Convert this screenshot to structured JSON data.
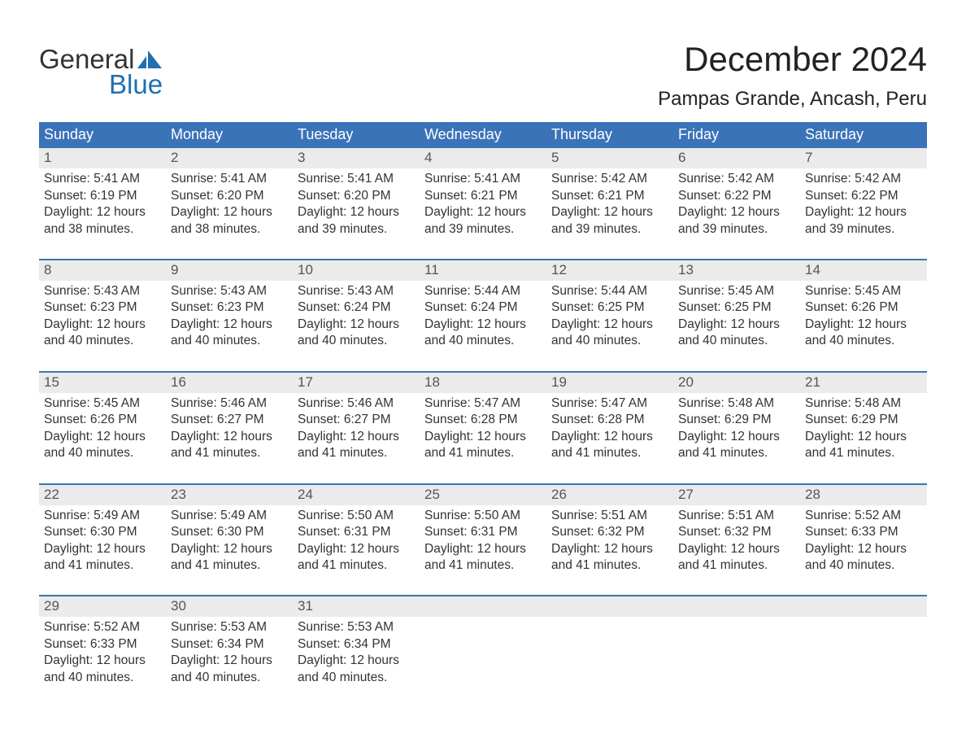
{
  "logo": {
    "word1": "General",
    "word2": "Blue"
  },
  "title": "December 2024",
  "location": "Pampas Grande, Ancash, Peru",
  "colors": {
    "header_blue": "#3b73b9",
    "accent_blue": "#1f6fb2",
    "light_gray": "#ebebeb",
    "text": "#333333",
    "page_bg": "#ffffff"
  },
  "daysOfWeek": [
    "Sunday",
    "Monday",
    "Tuesday",
    "Wednesday",
    "Thursday",
    "Friday",
    "Saturday"
  ],
  "weeks": [
    [
      {
        "date": "1",
        "sunrise": "5:41 AM",
        "sunset": "6:19 PM",
        "daylight": "12 hours and 38 minutes."
      },
      {
        "date": "2",
        "sunrise": "5:41 AM",
        "sunset": "6:20 PM",
        "daylight": "12 hours and 38 minutes."
      },
      {
        "date": "3",
        "sunrise": "5:41 AM",
        "sunset": "6:20 PM",
        "daylight": "12 hours and 39 minutes."
      },
      {
        "date": "4",
        "sunrise": "5:41 AM",
        "sunset": "6:21 PM",
        "daylight": "12 hours and 39 minutes."
      },
      {
        "date": "5",
        "sunrise": "5:42 AM",
        "sunset": "6:21 PM",
        "daylight": "12 hours and 39 minutes."
      },
      {
        "date": "6",
        "sunrise": "5:42 AM",
        "sunset": "6:22 PM",
        "daylight": "12 hours and 39 minutes."
      },
      {
        "date": "7",
        "sunrise": "5:42 AM",
        "sunset": "6:22 PM",
        "daylight": "12 hours and 39 minutes."
      }
    ],
    [
      {
        "date": "8",
        "sunrise": "5:43 AM",
        "sunset": "6:23 PM",
        "daylight": "12 hours and 40 minutes."
      },
      {
        "date": "9",
        "sunrise": "5:43 AM",
        "sunset": "6:23 PM",
        "daylight": "12 hours and 40 minutes."
      },
      {
        "date": "10",
        "sunrise": "5:43 AM",
        "sunset": "6:24 PM",
        "daylight": "12 hours and 40 minutes."
      },
      {
        "date": "11",
        "sunrise": "5:44 AM",
        "sunset": "6:24 PM",
        "daylight": "12 hours and 40 minutes."
      },
      {
        "date": "12",
        "sunrise": "5:44 AM",
        "sunset": "6:25 PM",
        "daylight": "12 hours and 40 minutes."
      },
      {
        "date": "13",
        "sunrise": "5:45 AM",
        "sunset": "6:25 PM",
        "daylight": "12 hours and 40 minutes."
      },
      {
        "date": "14",
        "sunrise": "5:45 AM",
        "sunset": "6:26 PM",
        "daylight": "12 hours and 40 minutes."
      }
    ],
    [
      {
        "date": "15",
        "sunrise": "5:45 AM",
        "sunset": "6:26 PM",
        "daylight": "12 hours and 40 minutes."
      },
      {
        "date": "16",
        "sunrise": "5:46 AM",
        "sunset": "6:27 PM",
        "daylight": "12 hours and 41 minutes."
      },
      {
        "date": "17",
        "sunrise": "5:46 AM",
        "sunset": "6:27 PM",
        "daylight": "12 hours and 41 minutes."
      },
      {
        "date": "18",
        "sunrise": "5:47 AM",
        "sunset": "6:28 PM",
        "daylight": "12 hours and 41 minutes."
      },
      {
        "date": "19",
        "sunrise": "5:47 AM",
        "sunset": "6:28 PM",
        "daylight": "12 hours and 41 minutes."
      },
      {
        "date": "20",
        "sunrise": "5:48 AM",
        "sunset": "6:29 PM",
        "daylight": "12 hours and 41 minutes."
      },
      {
        "date": "21",
        "sunrise": "5:48 AM",
        "sunset": "6:29 PM",
        "daylight": "12 hours and 41 minutes."
      }
    ],
    [
      {
        "date": "22",
        "sunrise": "5:49 AM",
        "sunset": "6:30 PM",
        "daylight": "12 hours and 41 minutes."
      },
      {
        "date": "23",
        "sunrise": "5:49 AM",
        "sunset": "6:30 PM",
        "daylight": "12 hours and 41 minutes."
      },
      {
        "date": "24",
        "sunrise": "5:50 AM",
        "sunset": "6:31 PM",
        "daylight": "12 hours and 41 minutes."
      },
      {
        "date": "25",
        "sunrise": "5:50 AM",
        "sunset": "6:31 PM",
        "daylight": "12 hours and 41 minutes."
      },
      {
        "date": "26",
        "sunrise": "5:51 AM",
        "sunset": "6:32 PM",
        "daylight": "12 hours and 41 minutes."
      },
      {
        "date": "27",
        "sunrise": "5:51 AM",
        "sunset": "6:32 PM",
        "daylight": "12 hours and 41 minutes."
      },
      {
        "date": "28",
        "sunrise": "5:52 AM",
        "sunset": "6:33 PM",
        "daylight": "12 hours and 40 minutes."
      }
    ],
    [
      {
        "date": "29",
        "sunrise": "5:52 AM",
        "sunset": "6:33 PM",
        "daylight": "12 hours and 40 minutes."
      },
      {
        "date": "30",
        "sunrise": "5:53 AM",
        "sunset": "6:34 PM",
        "daylight": "12 hours and 40 minutes."
      },
      {
        "date": "31",
        "sunrise": "5:53 AM",
        "sunset": "6:34 PM",
        "daylight": "12 hours and 40 minutes."
      },
      null,
      null,
      null,
      null
    ]
  ],
  "labels": {
    "sunrise": "Sunrise:",
    "sunset": "Sunset:",
    "daylight": "Daylight:"
  }
}
